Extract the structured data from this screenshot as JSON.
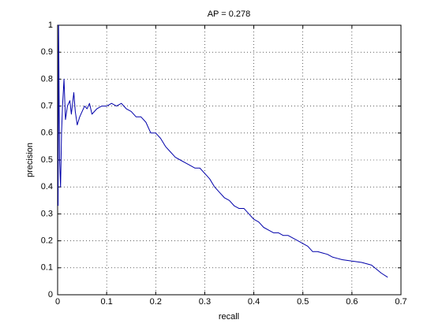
{
  "chart_data": {
    "type": "line",
    "title": "AP = 0.278",
    "x_label": "recall",
    "y_label": "precision",
    "x": [
      0.001,
      0.002,
      0.004,
      0.006,
      0.008,
      0.01,
      0.013,
      0.016,
      0.02,
      0.025,
      0.028,
      0.033,
      0.036,
      0.04,
      0.045,
      0.05,
      0.055,
      0.06,
      0.065,
      0.07,
      0.08,
      0.09,
      0.1,
      0.11,
      0.12,
      0.13,
      0.14,
      0.15,
      0.16,
      0.17,
      0.18,
      0.19,
      0.2,
      0.21,
      0.22,
      0.23,
      0.24,
      0.25,
      0.26,
      0.27,
      0.28,
      0.29,
      0.3,
      0.31,
      0.32,
      0.33,
      0.34,
      0.35,
      0.36,
      0.37,
      0.38,
      0.39,
      0.4,
      0.41,
      0.42,
      0.43,
      0.44,
      0.45,
      0.46,
      0.47,
      0.48,
      0.49,
      0.5,
      0.51,
      0.52,
      0.53,
      0.54,
      0.55,
      0.56,
      0.57,
      0.58,
      0.6,
      0.62,
      0.64,
      0.66,
      0.673
    ],
    "series": [
      {
        "color": "#0000aa",
        "values": [
          0.33,
          1.0,
          0.5,
          0.4,
          0.6,
          0.7,
          0.8,
          0.65,
          0.7,
          0.72,
          0.67,
          0.75,
          0.68,
          0.63,
          0.66,
          0.68,
          0.7,
          0.69,
          0.71,
          0.67,
          0.69,
          0.7,
          0.7,
          0.71,
          0.7,
          0.71,
          0.69,
          0.68,
          0.66,
          0.66,
          0.64,
          0.6,
          0.6,
          0.58,
          0.55,
          0.53,
          0.51,
          0.5,
          0.49,
          0.48,
          0.47,
          0.47,
          0.45,
          0.43,
          0.4,
          0.38,
          0.36,
          0.35,
          0.33,
          0.32,
          0.32,
          0.3,
          0.28,
          0.27,
          0.25,
          0.24,
          0.23,
          0.23,
          0.22,
          0.22,
          0.21,
          0.2,
          0.19,
          0.18,
          0.16,
          0.16,
          0.155,
          0.15,
          0.14,
          0.135,
          0.13,
          0.125,
          0.12,
          0.11,
          0.08,
          0.065
        ]
      }
    ],
    "xlim": [
      0,
      0.7
    ],
    "xticks": [
      0,
      0.1,
      0.2,
      0.3,
      0.4,
      0.5,
      0.6,
      0.7
    ],
    "ylim": [
      0,
      1
    ],
    "yticks": [
      0,
      0.1,
      0.2,
      0.3,
      0.4,
      0.5,
      0.6,
      0.7,
      0.8,
      0.9,
      1
    ],
    "grid": true
  }
}
